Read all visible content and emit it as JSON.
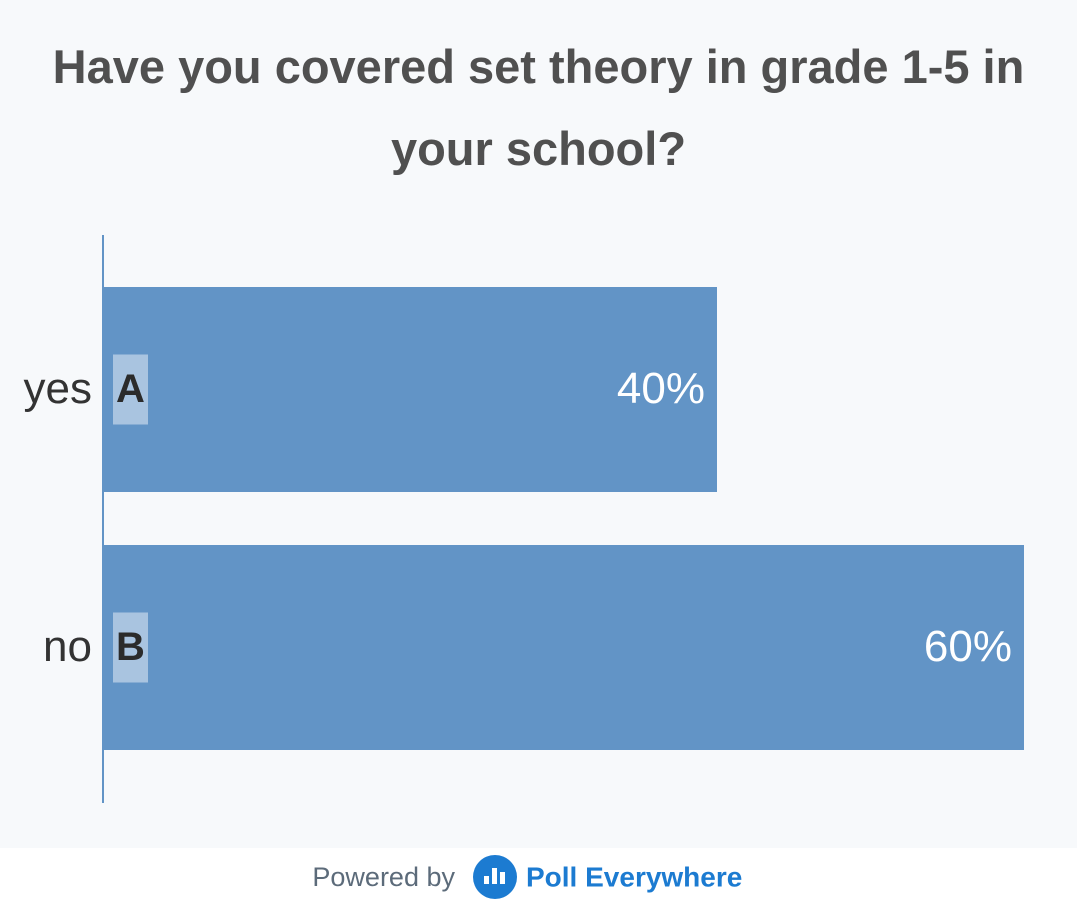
{
  "chart_data": {
    "type": "bar",
    "orientation": "horizontal",
    "title": "Have you covered set theory in grade 1-5 in your school?",
    "categories": [
      "yes",
      "no"
    ],
    "letters": [
      "A",
      "B"
    ],
    "values": [
      40,
      60
    ],
    "value_labels": [
      "40%",
      "60%"
    ],
    "color": "#6294c6"
  },
  "footer": {
    "text": "Powered by",
    "brand": "Poll Everywhere"
  }
}
